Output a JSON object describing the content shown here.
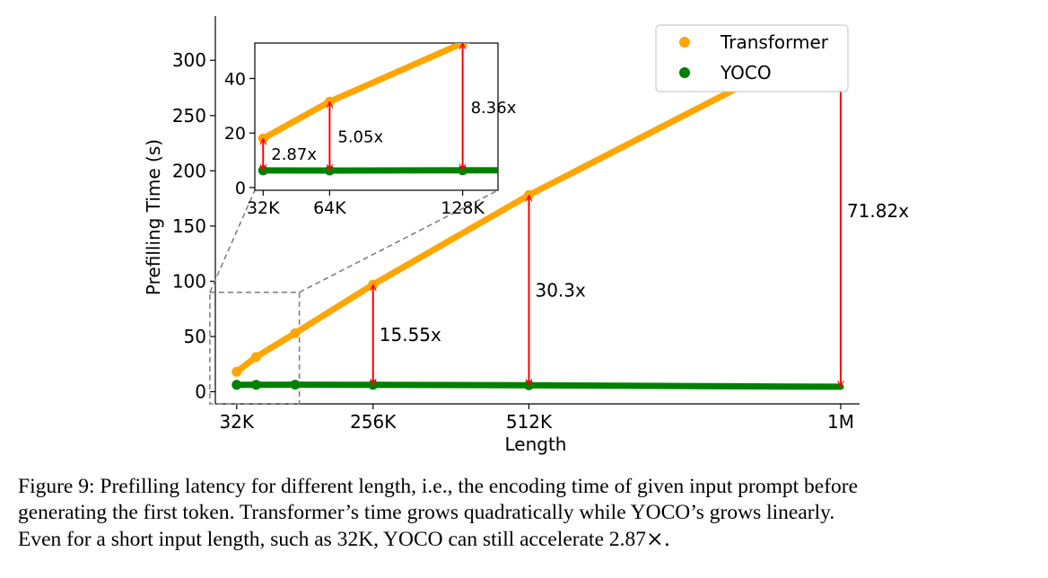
{
  "chart_data": [
    {
      "type": "scatter",
      "xlabel": "Length",
      "ylabel": "Prefilling Time (s)",
      "x": [
        32,
        64,
        128,
        256,
        512,
        1024
      ],
      "x_tick_values": [
        32,
        256,
        512,
        1024
      ],
      "x_tick_labels": [
        "32K",
        "256K",
        "512K",
        "1M"
      ],
      "y_ticks": [
        0,
        50,
        100,
        150,
        200,
        250,
        300
      ],
      "xlim": [
        -3,
        1055
      ],
      "ylim": [
        -11,
        340
      ],
      "legend_position": "top-right",
      "series": [
        {
          "name": "Transformer",
          "color": "#FFA500",
          "values": [
            18.0,
            31.5,
            53.0,
            97.0,
            178.0,
            323.0
          ]
        },
        {
          "name": "YOCO",
          "color": "#008000",
          "values": [
            6.27,
            6.24,
            6.34,
            6.24,
            5.87,
            4.5
          ]
        }
      ],
      "annotations": [
        {
          "x": 256,
          "text": "15.55x"
        },
        {
          "x": 512,
          "text": "30.3x"
        },
        {
          "x": 1024,
          "text": "71.82x"
        }
      ],
      "zoom_region": {
        "xlim": [
          -12,
          135
        ],
        "ylim": [
          -11,
          90
        ]
      },
      "grid": false
    },
    {
      "type": "scatter",
      "inset": true,
      "x": [
        32,
        64,
        128
      ],
      "x_tick_labels": [
        "32K",
        "64K",
        "128K"
      ],
      "y_ticks": [
        0,
        20,
        40
      ],
      "xlim": [
        28,
        145
      ],
      "ylim": [
        -1,
        53
      ],
      "series": [
        {
          "name": "Transformer",
          "color": "#FFA500",
          "values": [
            18.0,
            31.5,
            53.0
          ]
        },
        {
          "name": "YOCO",
          "color": "#008000",
          "values": [
            6.27,
            6.24,
            6.34
          ]
        }
      ],
      "annotations": [
        {
          "x": 32,
          "text": "2.87x"
        },
        {
          "x": 64,
          "text": "5.05x"
        },
        {
          "x": 128,
          "text": "8.36x"
        }
      ],
      "grid": false
    }
  ],
  "caption": {
    "line1": "Figure 9: Prefilling latency for different length, i.e., the encoding time of given input prompt before",
    "line2": "generating the first token. Transformer’s time grows quadratically while YOCO’s grows linearly.",
    "line3_text": "Even for a short input length, such as 32K, YOCO can still accelerate 2.87",
    "line3_symbol": "×."
  }
}
